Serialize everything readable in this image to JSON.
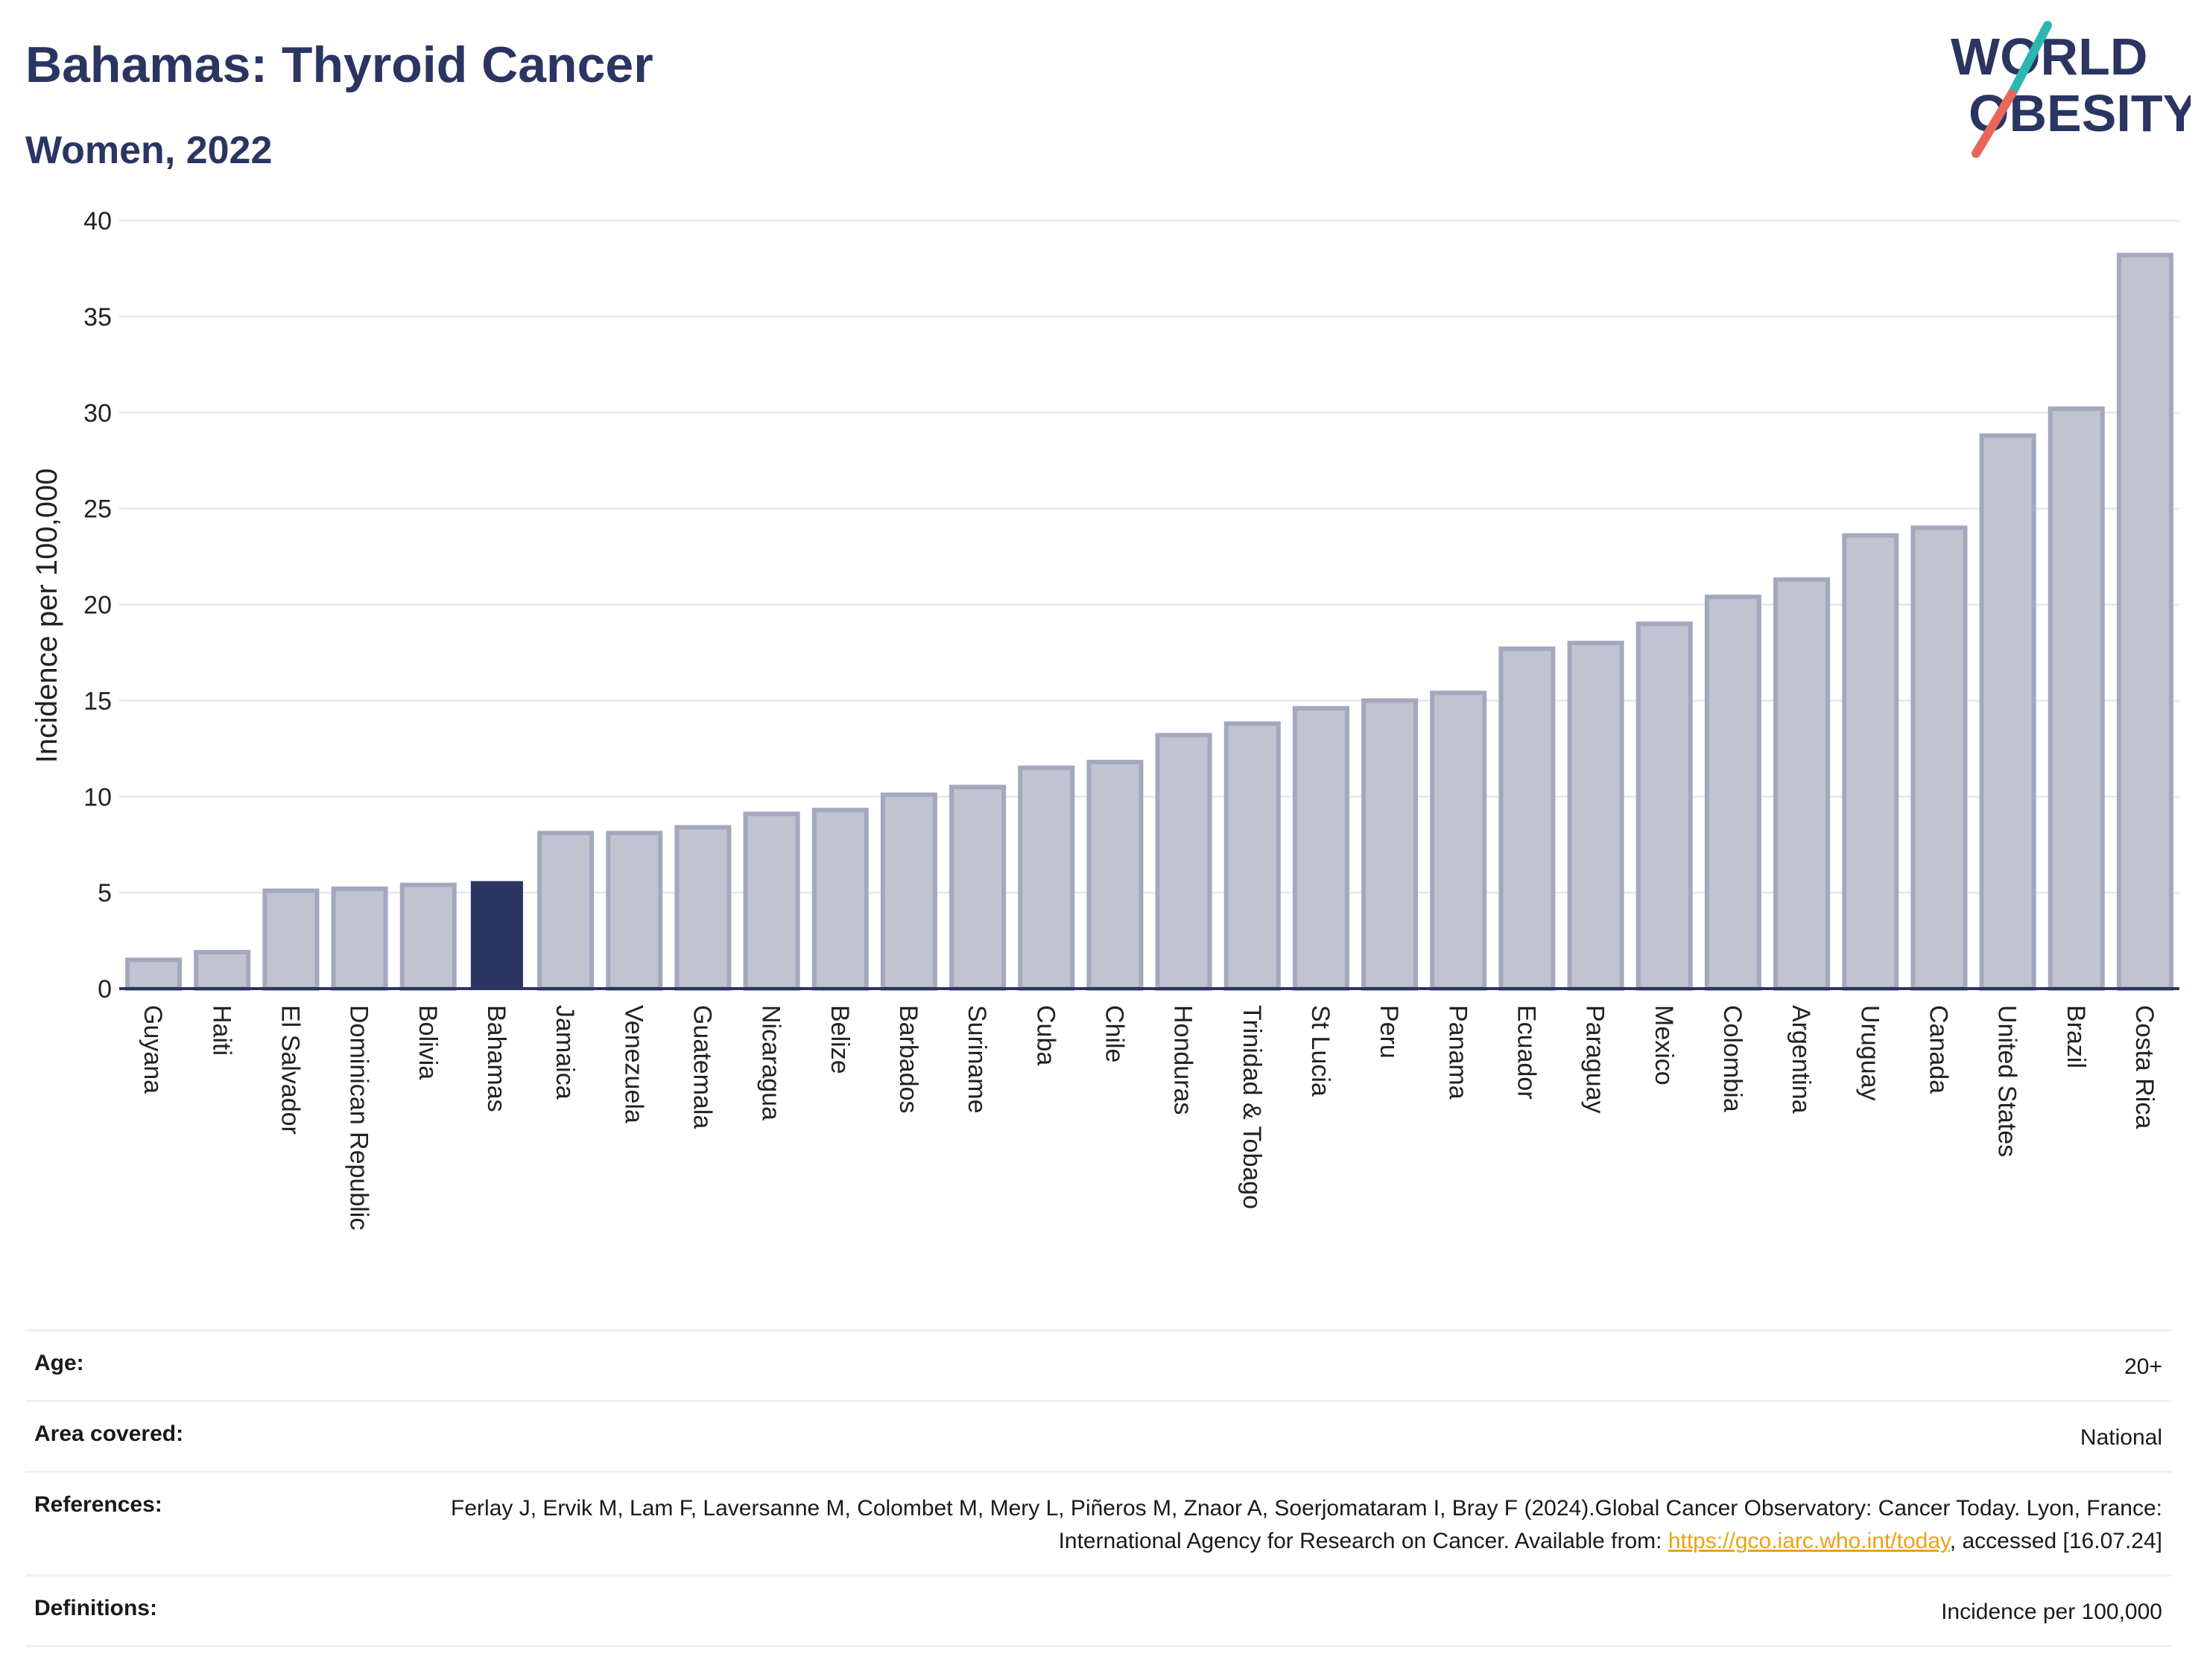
{
  "header": {
    "title": "Bahamas: Thyroid Cancer",
    "subtitle": "Women, 2022"
  },
  "logo": {
    "line1": "WORLD",
    "line2": "OBESITY",
    "colors": {
      "text": "#2b3562",
      "slash_top": "#2bb7b0",
      "slash_bottom": "#e8665a"
    }
  },
  "chart_data": {
    "type": "bar",
    "title": "Bahamas: Thyroid Cancer",
    "subtitle": "Women, 2022",
    "ylabel": "Incidence per 100,000",
    "xlabel": "",
    "ylim": [
      0,
      40
    ],
    "yticks": [
      0,
      5,
      10,
      15,
      20,
      25,
      30,
      35,
      40
    ],
    "grid": true,
    "highlight": "Bahamas",
    "colors": {
      "bar": "#c1c4d0",
      "bar_edge": "#a3a8bf",
      "highlight": "#2b3562",
      "axis": "#2b3562",
      "grid": "#e8eaf0"
    },
    "categories": [
      "Guyana",
      "Haiti",
      "El Salvador",
      "Dominican Republic",
      "Bolivia",
      "Bahamas",
      "Jamaica",
      "Venezuela",
      "Guatemala",
      "Nicaragua",
      "Belize",
      "Barbados",
      "Suriname",
      "Cuba",
      "Chile",
      "Honduras",
      "Trinidad & Tobago",
      "St Lucia",
      "Peru",
      "Panama",
      "Ecuador",
      "Paraguay",
      "Mexico",
      "Colombia",
      "Argentina",
      "Uruguay",
      "Canada",
      "United States",
      "Brazil",
      "Costa Rica"
    ],
    "values": [
      1.5,
      1.9,
      5.1,
      5.2,
      5.4,
      5.6,
      8.1,
      8.1,
      8.4,
      9.1,
      9.3,
      10.1,
      10.5,
      11.5,
      11.8,
      13.2,
      13.8,
      14.6,
      15.0,
      15.4,
      17.7,
      18.0,
      19.0,
      20.4,
      21.3,
      23.6,
      24.0,
      28.8,
      30.2,
      38.2
    ]
  },
  "info": {
    "rows": [
      {
        "label": "Age:",
        "value": "20+"
      },
      {
        "label": "Area covered:",
        "value": "National"
      },
      {
        "label": "References:",
        "value_pre": "Ferlay J, Ervik M, Lam F, Laversanne M, Colombet M, Mery L, Piñeros M, Znaor A, Soerjomataram I, Bray F (2024).Global Cancer Observatory: Cancer Today. Lyon, France: International Agency for Research on Cancer. Available from: ",
        "link": "https://gco.iarc.who.int/today",
        "value_post": ", accessed [16.07.24]"
      },
      {
        "label": "Definitions:",
        "value": "Incidence per 100,000"
      }
    ]
  }
}
